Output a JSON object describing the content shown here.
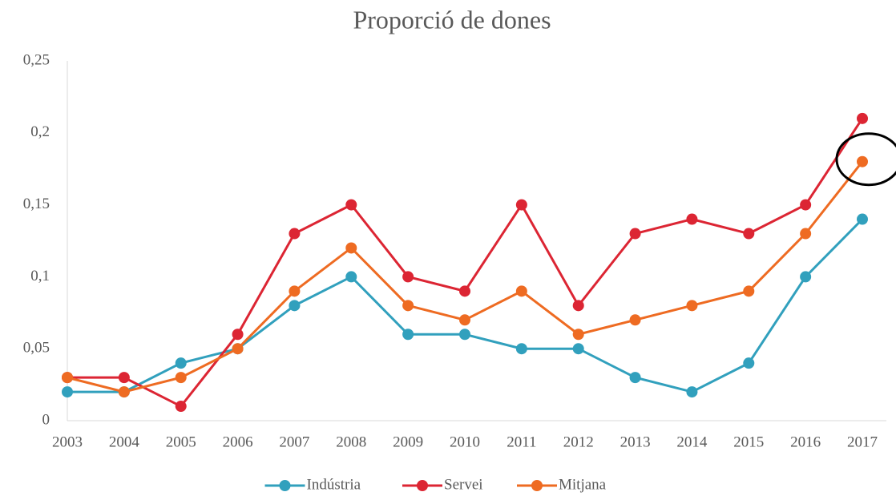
{
  "chart_data": {
    "type": "line",
    "title": "Proporció de dones",
    "categories": [
      "2003",
      "2004",
      "2005",
      "2006",
      "2007",
      "2008",
      "2009",
      "2010",
      "2011",
      "2012",
      "2013",
      "2014",
      "2015",
      "2016",
      "2017"
    ],
    "series": [
      {
        "name": "Indústria",
        "color": "#31a0bd",
        "values": [
          0.02,
          0.02,
          0.04,
          0.05,
          0.08,
          0.1,
          0.06,
          0.06,
          0.05,
          0.05,
          0.03,
          0.02,
          0.04,
          0.1,
          0.14
        ]
      },
      {
        "name": "Servei",
        "color": "#dc2533",
        "values": [
          0.03,
          0.03,
          0.01,
          0.06,
          0.13,
          0.15,
          0.1,
          0.09,
          0.15,
          0.08,
          0.13,
          0.14,
          0.13,
          0.15,
          0.21
        ]
      },
      {
        "name": "Mitjana",
        "color": "#ee6b22",
        "values": [
          0.03,
          0.02,
          0.03,
          0.05,
          0.09,
          0.12,
          0.08,
          0.07,
          0.09,
          0.06,
          0.07,
          0.08,
          0.09,
          0.13,
          0.18
        ]
      }
    ],
    "ylim": [
      0,
      0.25
    ],
    "yticks": [
      0,
      {
        "value": 0.05,
        "label": "0,05"
      },
      {
        "value": 0.1,
        "label": "0,1"
      },
      {
        "value": 0.15,
        "label": "0,15"
      },
      {
        "value": 0.2,
        "label": "0,2"
      },
      {
        "value": 0.25,
        "label": "0,25"
      }
    ],
    "grid": false,
    "legend": "bottom"
  }
}
